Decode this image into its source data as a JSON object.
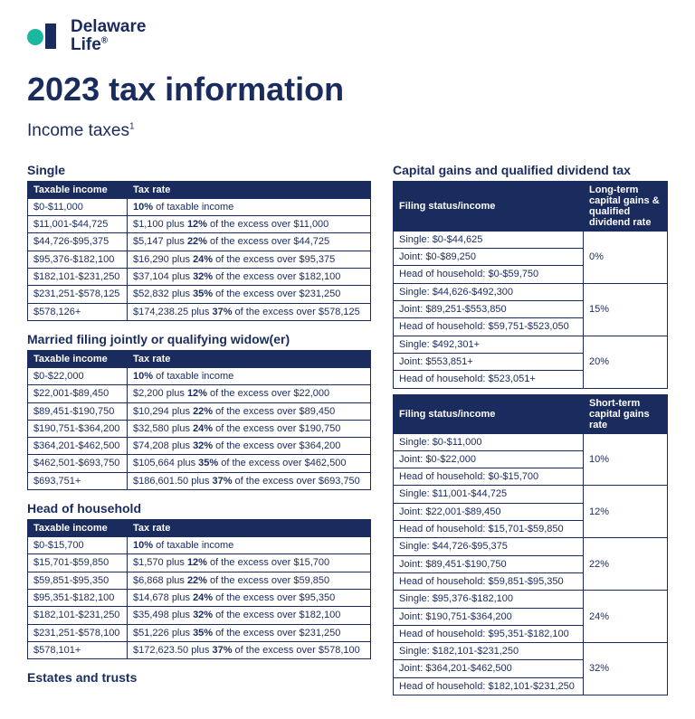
{
  "brand": {
    "name": "Delaware\nLife",
    "reg": "®"
  },
  "title": "2023 tax information",
  "subtitle": "Income taxes",
  "footnote": "1",
  "single": {
    "heading": "Single",
    "col1": "Taxable income",
    "col2": "Tax rate",
    "rows": [
      [
        "$0-$11,000",
        "<b>10%</b> of taxable income"
      ],
      [
        "$11,001-$44,725",
        "$1,100 plus <b>12%</b> of the excess over $11,000"
      ],
      [
        "$44,726-$95,375",
        "$5,147 plus <b>22%</b> of the excess over $44,725"
      ],
      [
        "$95,376-$182,100",
        "$16,290 plus <b>24%</b> of the excess over $95,375"
      ],
      [
        "$182,101-$231,250",
        "$37,104 plus <b>32%</b> of the excess over $182,100"
      ],
      [
        "$231,251-$578,125",
        "$52,832 plus <b>35%</b> of the excess over $231,250"
      ],
      [
        "$578,126+",
        "$174,238.25 plus <b>37%</b> of the excess over $578,125"
      ]
    ]
  },
  "married": {
    "heading": "Married filing jointly or qualifying widow(er)",
    "col1": "Taxable income",
    "col2": "Tax rate",
    "rows": [
      [
        "$0-$22,000",
        "<b>10%</b> of taxable income"
      ],
      [
        "$22,001-$89,450",
        "$2,200 plus <b>12%</b> of the excess over $22,000"
      ],
      [
        "$89,451-$190,750",
        "$10,294 plus <b>22%</b> of the excess over $89,450"
      ],
      [
        "$190,751-$364,200",
        "$32,580 plus <b>24%</b> of the excess over $190,750"
      ],
      [
        "$364,201-$462,500",
        "$74,208 plus <b>32%</b> of the excess over $364,200"
      ],
      [
        "$462,501-$693,750",
        "$105,664 plus <b>35%</b> of the excess over $462,500"
      ],
      [
        "$693,751+",
        "$186,601.50 plus <b>37%</b> of the excess over $693,750"
      ]
    ]
  },
  "hoh": {
    "heading": "Head of household",
    "col1": "Taxable income",
    "col2": "Tax rate",
    "rows": [
      [
        "$0-$15,700",
        "<b>10%</b> of taxable income"
      ],
      [
        "$15,701-$59,850",
        "$1,570 plus <b>12%</b> of the excess over $15,700"
      ],
      [
        "$59,851-$95,350",
        "$6,868 plus <b>22%</b> of the excess over $59,850"
      ],
      [
        "$95,351-$182,100",
        "$14,678 plus <b>24%</b> of the excess over $95,350"
      ],
      [
        "$182,101-$231,250",
        "$35,498 plus <b>32%</b> of the excess over $182,100"
      ],
      [
        "$231,251-$578,100",
        "$51,226 plus <b>35%</b> of the excess over $231,250"
      ],
      [
        "$578,101+",
        "$172,623.50 plus <b>37%</b> of the excess over $578,100"
      ]
    ]
  },
  "estates": {
    "heading": "Estates and trusts"
  },
  "cg": {
    "heading": "Capital gains and qualified dividend tax",
    "lt": {
      "col1": "Filing status/income",
      "col2": "Long-term capital gains & qualified dividend rate",
      "groups": [
        {
          "rate": "0%",
          "rows": [
            "Single: $0-$44,625",
            "Joint: $0-$89,250",
            "Head of household: $0-$59,750"
          ]
        },
        {
          "rate": "15%",
          "rows": [
            "Single: $44,626-$492,300",
            "Joint: $89,251-$553,850",
            "Head of household: $59,751-$523,050"
          ]
        },
        {
          "rate": "20%",
          "rows": [
            "Single: $492,301+",
            "Joint: $553,851+",
            "Head of household: $523,051+"
          ]
        }
      ]
    },
    "st": {
      "col1": "Filing status/income",
      "col2": "Short-term capital gains rate",
      "groups": [
        {
          "rate": "10%",
          "rows": [
            "Single: $0-$11,000",
            "Joint: $0-$22,000",
            "Head of household: $0-$15,700"
          ]
        },
        {
          "rate": "12%",
          "rows": [
            "Single: $11,001-$44,725",
            "Joint: $22,001-$89,450",
            "Head of household: $15,701-$59,850"
          ]
        },
        {
          "rate": "22%",
          "rows": [
            "Single: $44,726-$95,375",
            "Joint: $89,451-$190,750",
            "Head of household: $59,851-$95,350"
          ]
        },
        {
          "rate": "24%",
          "rows": [
            "Single: $95,376-$182,100",
            "Joint: $190,751-$364,200",
            "Head of household: $95,351-$182,100"
          ]
        },
        {
          "rate": "32%",
          "rows": [
            "Single: $182,101-$231,250",
            "Joint: $364,201-$462,500",
            "Head of household: $182,101-$231,250"
          ]
        }
      ]
    }
  }
}
